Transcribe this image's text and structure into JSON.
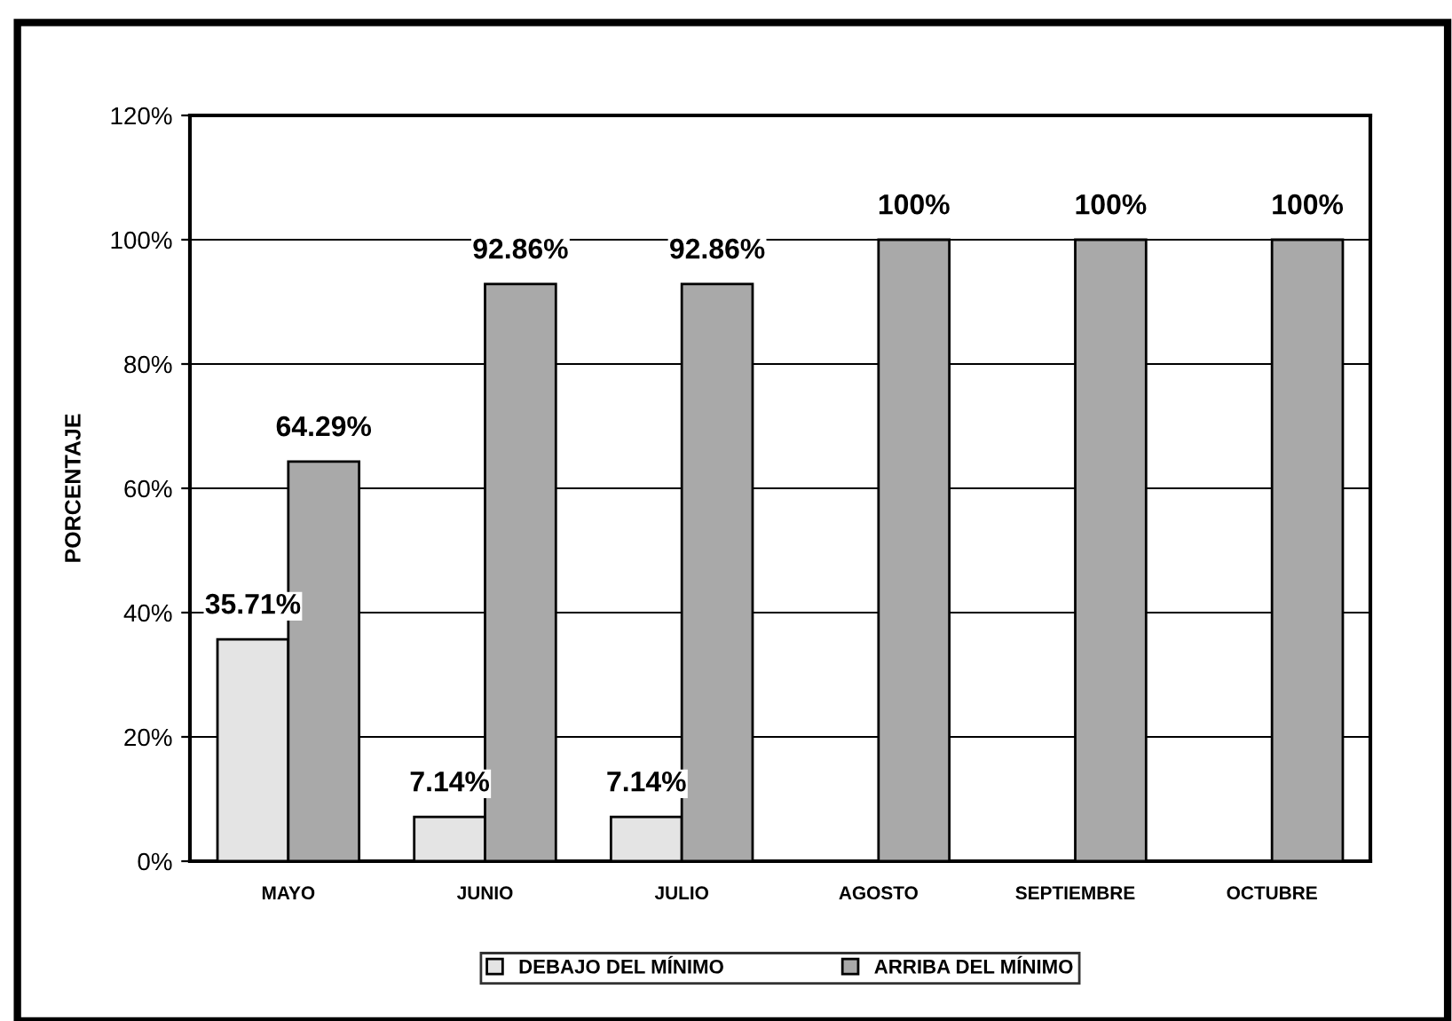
{
  "chart_data": {
    "type": "bar",
    "ylabel": "PORCENTAJE",
    "categories": [
      "MAYO",
      "JUNIO",
      "JULIO",
      "AGOSTO",
      "SEPTIEMBRE",
      "OCTUBRE"
    ],
    "series": [
      {
        "name": "DEBAJO DEL MÍNIMO",
        "color": "#e4e4e4",
        "values": [
          35.71,
          7.14,
          7.14,
          0,
          0,
          0
        ],
        "value_labels": [
          "35.71%",
          "7.14%",
          "7.14%",
          null,
          null,
          null
        ]
      },
      {
        "name": "ARRIBA DEL MÍNIMO",
        "color": "#a9a9a9",
        "values": [
          64.29,
          92.86,
          92.86,
          100,
          100,
          100
        ],
        "value_labels": [
          "64.29%",
          "92.86%",
          "92.86%",
          "100%",
          "100%",
          "100%"
        ]
      }
    ],
    "ylim": [
      0,
      120
    ],
    "yticks": [
      {
        "value": 0,
        "label": "0%"
      },
      {
        "value": 20,
        "label": "20%"
      },
      {
        "value": 40,
        "label": "40%"
      },
      {
        "value": 60,
        "label": "60%"
      },
      {
        "value": 80,
        "label": "80%"
      },
      {
        "value": 100,
        "label": "100%"
      },
      {
        "value": 120,
        "label": "120%"
      }
    ],
    "grid": "y",
    "legend": "bottom"
  }
}
